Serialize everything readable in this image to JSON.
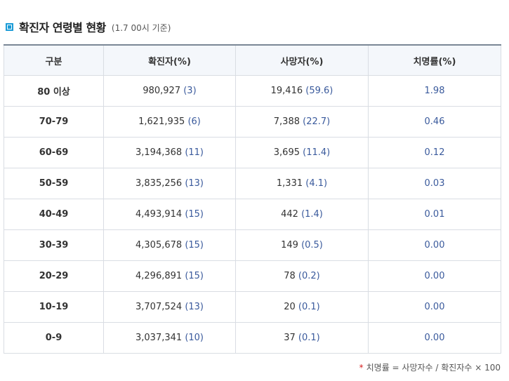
{
  "title": "확진자 연령별 현황",
  "basis": "(1.7 00시 기준)",
  "table": {
    "headers": [
      "구분",
      "확진자(%)",
      "사망자(%)",
      "치명률(%)"
    ],
    "rows": [
      {
        "age": "80 이상",
        "cases": "980,927",
        "cases_pct": "(3)",
        "deaths": "19,416",
        "deaths_pct": "(59.6)",
        "rate": "1.98"
      },
      {
        "age": "70-79",
        "cases": "1,621,935",
        "cases_pct": "(6)",
        "deaths": "7,388",
        "deaths_pct": "(22.7)",
        "rate": "0.46"
      },
      {
        "age": "60-69",
        "cases": "3,194,368",
        "cases_pct": "(11)",
        "deaths": "3,695",
        "deaths_pct": "(11.4)",
        "rate": "0.12"
      },
      {
        "age": "50-59",
        "cases": "3,835,256",
        "cases_pct": "(13)",
        "deaths": "1,331",
        "deaths_pct": "(4.1)",
        "rate": "0.03"
      },
      {
        "age": "40-49",
        "cases": "4,493,914",
        "cases_pct": "(15)",
        "deaths": "442",
        "deaths_pct": "(1.4)",
        "rate": "0.01"
      },
      {
        "age": "30-39",
        "cases": "4,305,678",
        "cases_pct": "(15)",
        "deaths": "149",
        "deaths_pct": "(0.5)",
        "rate": "0.00"
      },
      {
        "age": "20-29",
        "cases": "4,296,891",
        "cases_pct": "(15)",
        "deaths": "78",
        "deaths_pct": "(0.2)",
        "rate": "0.00"
      },
      {
        "age": "10-19",
        "cases": "3,707,524",
        "cases_pct": "(13)",
        "deaths": "20",
        "deaths_pct": "(0.1)",
        "rate": "0.00"
      },
      {
        "age": "0-9",
        "cases": "3,037,341",
        "cases_pct": "(10)",
        "deaths": "37",
        "deaths_pct": "(0.1)",
        "rate": "0.00"
      }
    ]
  },
  "footnote": {
    "star": "*",
    "text": "치명률 = 사망자수 / 확진자수 × 100"
  },
  "colors": {
    "accent": "#1a9bd7",
    "value_blue": "#3a5a9c",
    "header_bg": "#f4f7fb",
    "footnote_star": "#d62020"
  }
}
